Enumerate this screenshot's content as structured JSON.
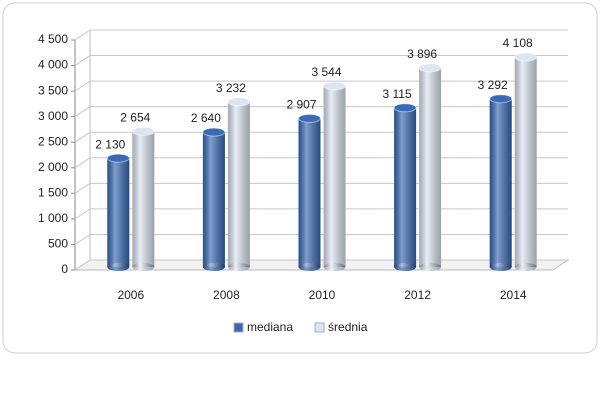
{
  "chart_data": {
    "type": "bar",
    "categories": [
      "2006",
      "2008",
      "2010",
      "2012",
      "2014"
    ],
    "series": [
      {
        "name": "mediana",
        "color": "#3a6ab5",
        "values": [
          2130,
          2640,
          2907,
          3115,
          3292
        ],
        "value_labels": [
          "2 130",
          "2 640",
          "2 907",
          "3 115",
          "3 292"
        ]
      },
      {
        "name": "średnia",
        "color": "#dde5f1",
        "values": [
          2654,
          3232,
          3544,
          3896,
          4108
        ],
        "value_labels": [
          "2 654",
          "3 232",
          "3 544",
          "3 896",
          "4 108"
        ]
      }
    ],
    "ylim": [
      0,
      4500
    ],
    "yticks": [
      0,
      500,
      {
        "value": 1000,
        "label": "1 000"
      },
      {
        "value": 1500,
        "label": "1 500"
      },
      {
        "value": 2000,
        "label": "2 000"
      },
      {
        "value": 2500,
        "label": "2 500"
      },
      {
        "value": 3000,
        "label": "3 000"
      },
      {
        "value": 3500,
        "label": "3 500"
      },
      {
        "value": 4000,
        "label": "4 000"
      },
      {
        "value": 4500,
        "label": "4 500"
      }
    ],
    "grid": true,
    "legend": "bottom"
  }
}
